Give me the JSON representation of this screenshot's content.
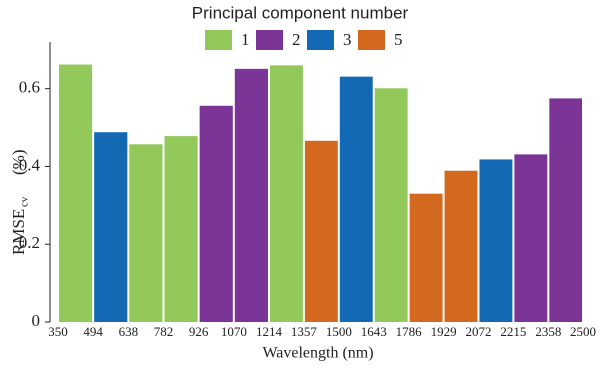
{
  "chart_data": {
    "type": "histogram",
    "title": "Principal component number",
    "x_label": "Wavelength (nm)",
    "y_label": "RMSE",
    "y_label_sub": "cv",
    "y_label_unit": "(%)",
    "bins": [
      350,
      494,
      638,
      782,
      926,
      1070,
      1214,
      1357,
      1500,
      1643,
      1786,
      1929,
      2072,
      2215,
      2358,
      2500
    ],
    "series": [
      {
        "name": "1",
        "color": "#92c95a",
        "values": [
          0.662,
          null,
          0.457,
          0.478,
          null,
          null,
          0.66,
          null,
          null,
          0.601,
          null,
          null,
          null,
          null,
          null
        ]
      },
      {
        "name": "2",
        "color": "#7a3596",
        "values": [
          null,
          null,
          null,
          null,
          0.556,
          0.651,
          null,
          null,
          null,
          null,
          null,
          null,
          null,
          0.431,
          0.575
        ]
      },
      {
        "name": "3",
        "color": "#1469b5",
        "values": [
          null,
          0.488,
          null,
          null,
          null,
          null,
          null,
          null,
          0.631,
          null,
          null,
          null,
          0.418,
          null,
          null
        ]
      },
      {
        "name": "5",
        "color": "#d2691e",
        "values": [
          null,
          null,
          null,
          null,
          null,
          null,
          null,
          0.466,
          null,
          null,
          0.33,
          0.389,
          null,
          null,
          null
        ]
      }
    ],
    "xlim": [
      350,
      2500
    ],
    "ylim": [
      0,
      0.72
    ],
    "yticks": [
      0,
      0.2,
      0.4,
      0.6
    ],
    "legend": "top"
  }
}
